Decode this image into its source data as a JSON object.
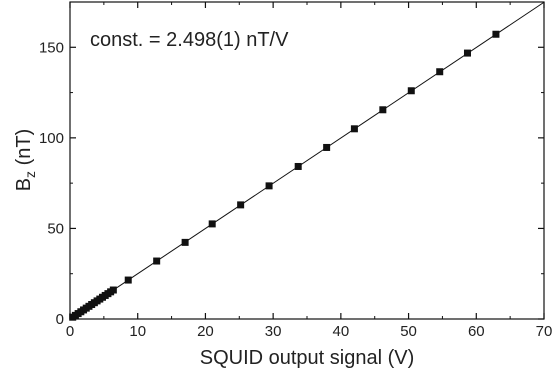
{
  "chart_data": {
    "type": "scatter",
    "xlabel": "SQUID output signal (V)",
    "ylabel_main": "B",
    "ylabel_sub": "z",
    "ylabel_unit": " (nT)",
    "annotation": "const. = 2.498(1) nT/V",
    "xlim": [
      0,
      70
    ],
    "ylim": [
      0,
      175
    ],
    "xticks": [
      0,
      10,
      20,
      30,
      40,
      50,
      60,
      70
    ],
    "yticks": [
      0,
      50,
      100,
      150
    ],
    "grid": false,
    "series": [
      {
        "marker": "square",
        "color": "#111111",
        "x": [
          0.4,
          0.8,
          1.2,
          1.6,
          2.0,
          2.4,
          2.8,
          3.2,
          3.6,
          4.0,
          4.4,
          4.8,
          5.2,
          5.6,
          6.0,
          6.4,
          8.6,
          12.8,
          17.0,
          21.0,
          25.2,
          29.4,
          33.7,
          37.9,
          42.0,
          46.2,
          50.4,
          54.6,
          58.7,
          62.9
        ],
        "y": [
          1.0,
          2.0,
          3.0,
          4.0,
          5.0,
          6.0,
          7.0,
          8.0,
          9.0,
          10.0,
          11.0,
          12.0,
          13.0,
          14.0,
          15.0,
          16.0,
          21.5,
          32.0,
          42.3,
          52.5,
          63.0,
          73.5,
          84.2,
          94.7,
          105.0,
          115.5,
          126.0,
          136.5,
          146.8,
          157.2
        ]
      }
    ],
    "fit": {
      "slope": 2.498,
      "intercept": 0,
      "color": "#111111"
    }
  }
}
